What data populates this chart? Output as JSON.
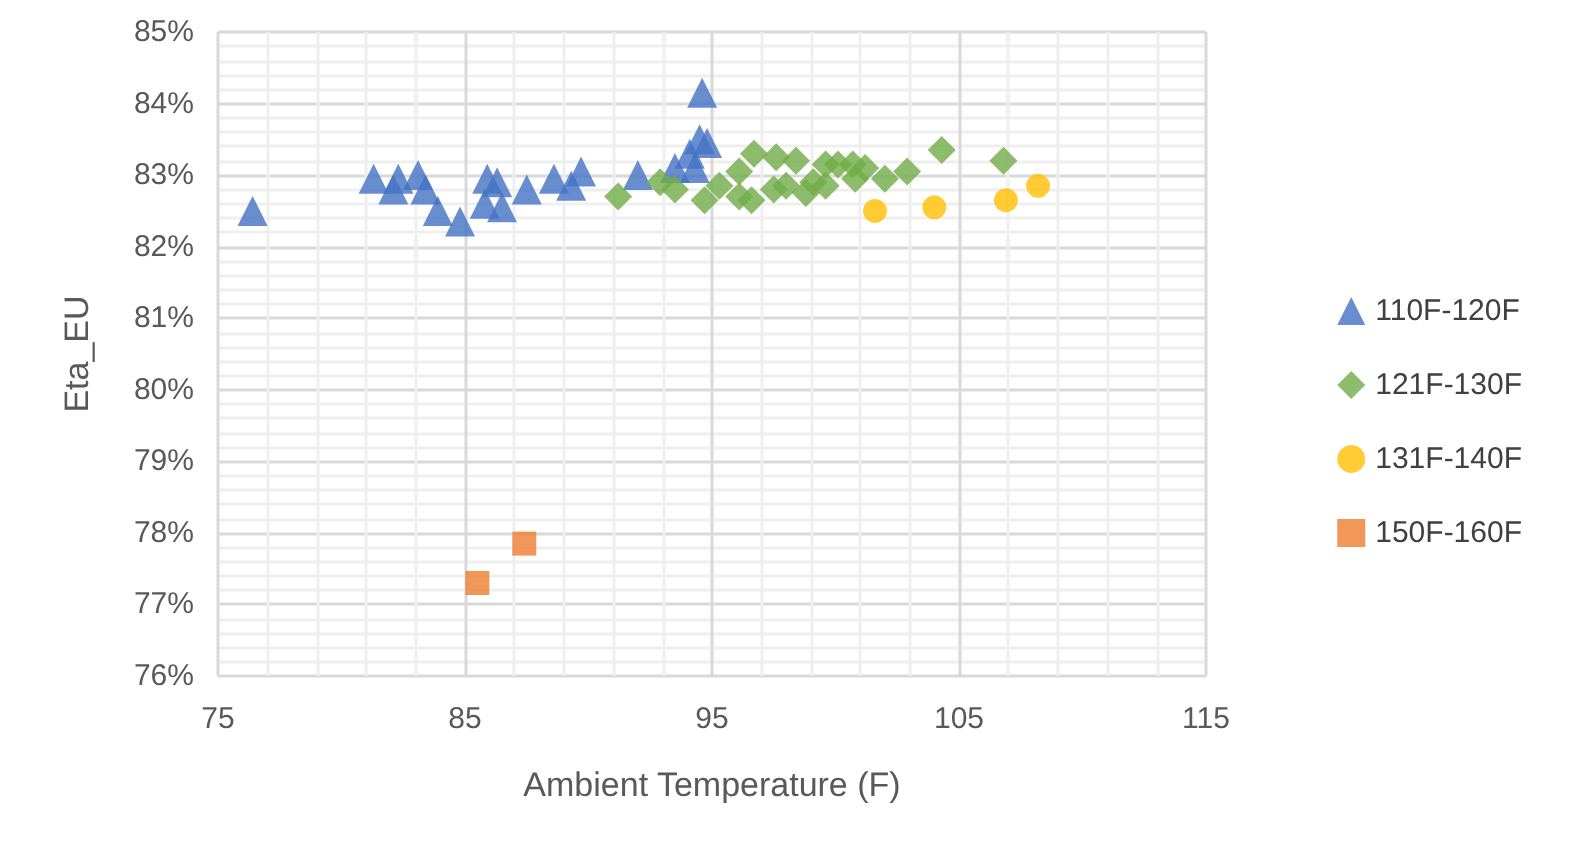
{
  "chart_data": {
    "type": "scatter",
    "xlabel": "Ambient Temperature (F)",
    "ylabel": "Eta_EU",
    "xlim": [
      75,
      115
    ],
    "xticks": [
      75,
      85,
      95,
      105,
      115
    ],
    "ylim": [
      76,
      85
    ],
    "yticks": [
      {
        "value": 76,
        "label": "76%"
      },
      {
        "value": 77,
        "label": "77%"
      },
      {
        "value": 78,
        "label": "78%"
      },
      {
        "value": 79,
        "label": "79%"
      },
      {
        "value": 80,
        "label": "80%"
      },
      {
        "value": 81,
        "label": "81%"
      },
      {
        "value": 82,
        "label": "82%"
      },
      {
        "value": 83,
        "label": "83%"
      },
      {
        "value": 84,
        "label": "84%"
      },
      {
        "value": 85,
        "label": "85%"
      }
    ],
    "grid": true,
    "legend": "right",
    "series": [
      {
        "name": "110F-120F",
        "color": "#4472c4",
        "marker": "triangle",
        "x": [
          76.4,
          81.3,
          82.1,
          82.3,
          83.1,
          83.4,
          83.9,
          84.8,
          85.9,
          86.3,
          85.8,
          86.5,
          87.5,
          88.6,
          89.7,
          89.3,
          92.0,
          93.5,
          94.3,
          94.1,
          94.5,
          94.8,
          94.6
        ],
        "values": [
          82.5,
          82.95,
          82.8,
          82.95,
          83.0,
          82.8,
          82.5,
          82.35,
          82.95,
          82.9,
          82.6,
          82.55,
          82.8,
          82.95,
          83.05,
          82.85,
          83.0,
          83.1,
          83.1,
          83.3,
          83.5,
          83.45,
          84.15
        ]
      },
      {
        "name": "121F-130F",
        "color": "#70ad47",
        "marker": "diamond",
        "x": [
          91.2,
          92.9,
          93.5,
          94.7,
          95.3,
          96.1,
          96.1,
          96.6,
          96.7,
          97.5,
          97.6,
          98.0,
          98.4,
          98.8,
          99.1,
          99.6,
          99.6,
          100.1,
          100.7,
          100.8,
          101.2,
          102.0,
          102.9,
          104.3,
          106.8
        ],
        "values": [
          82.7,
          82.9,
          82.8,
          82.65,
          82.85,
          83.05,
          82.7,
          82.65,
          83.3,
          82.8,
          83.25,
          82.85,
          83.2,
          82.75,
          82.9,
          82.85,
          83.15,
          83.15,
          83.15,
          82.95,
          83.1,
          82.95,
          83.05,
          83.35,
          83.2
        ]
      },
      {
        "name": "131F-140F",
        "color": "#ffc000",
        "marker": "circle",
        "x": [
          101.6,
          104.0,
          106.9,
          108.2
        ],
        "values": [
          82.5,
          82.55,
          82.65,
          82.85
        ]
      },
      {
        "name": "150F-160F",
        "color": "#ed7d31",
        "marker": "square",
        "x": [
          85.5,
          87.4
        ],
        "values": [
          77.3,
          77.85
        ]
      }
    ]
  }
}
